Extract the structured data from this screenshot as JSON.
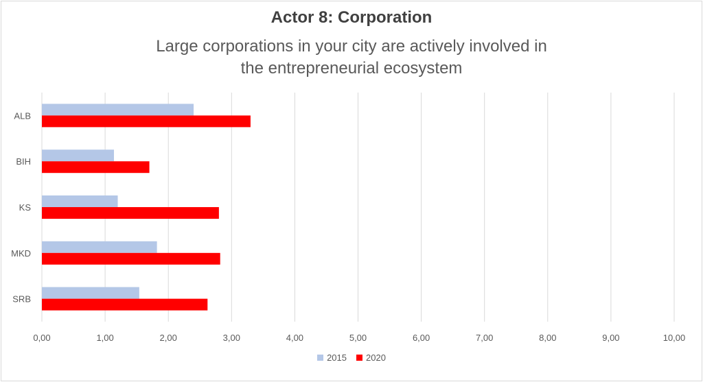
{
  "chart_data": {
    "type": "bar",
    "orientation": "horizontal",
    "title": "Actor 8: Corporation",
    "subtitle": "Large corporations in your city are actively involved in the entrepreneurial ecosystem",
    "categories": [
      "ALB",
      "BIH",
      "KS",
      "MKD",
      "SRB"
    ],
    "series": [
      {
        "name": "2015",
        "color": "#b4c7e7",
        "values": [
          2.4,
          1.14,
          1.2,
          1.82,
          1.54
        ]
      },
      {
        "name": "2020",
        "color": "#ff0000",
        "values": [
          3.3,
          1.7,
          2.8,
          2.82,
          2.62
        ]
      }
    ],
    "xlim": [
      0,
      10
    ],
    "xticks": [
      "0,00",
      "1,00",
      "2,00",
      "3,00",
      "4,00",
      "5,00",
      "6,00",
      "7,00",
      "8,00",
      "9,00",
      "10,00"
    ],
    "grid": true,
    "legend_position": "bottom"
  }
}
